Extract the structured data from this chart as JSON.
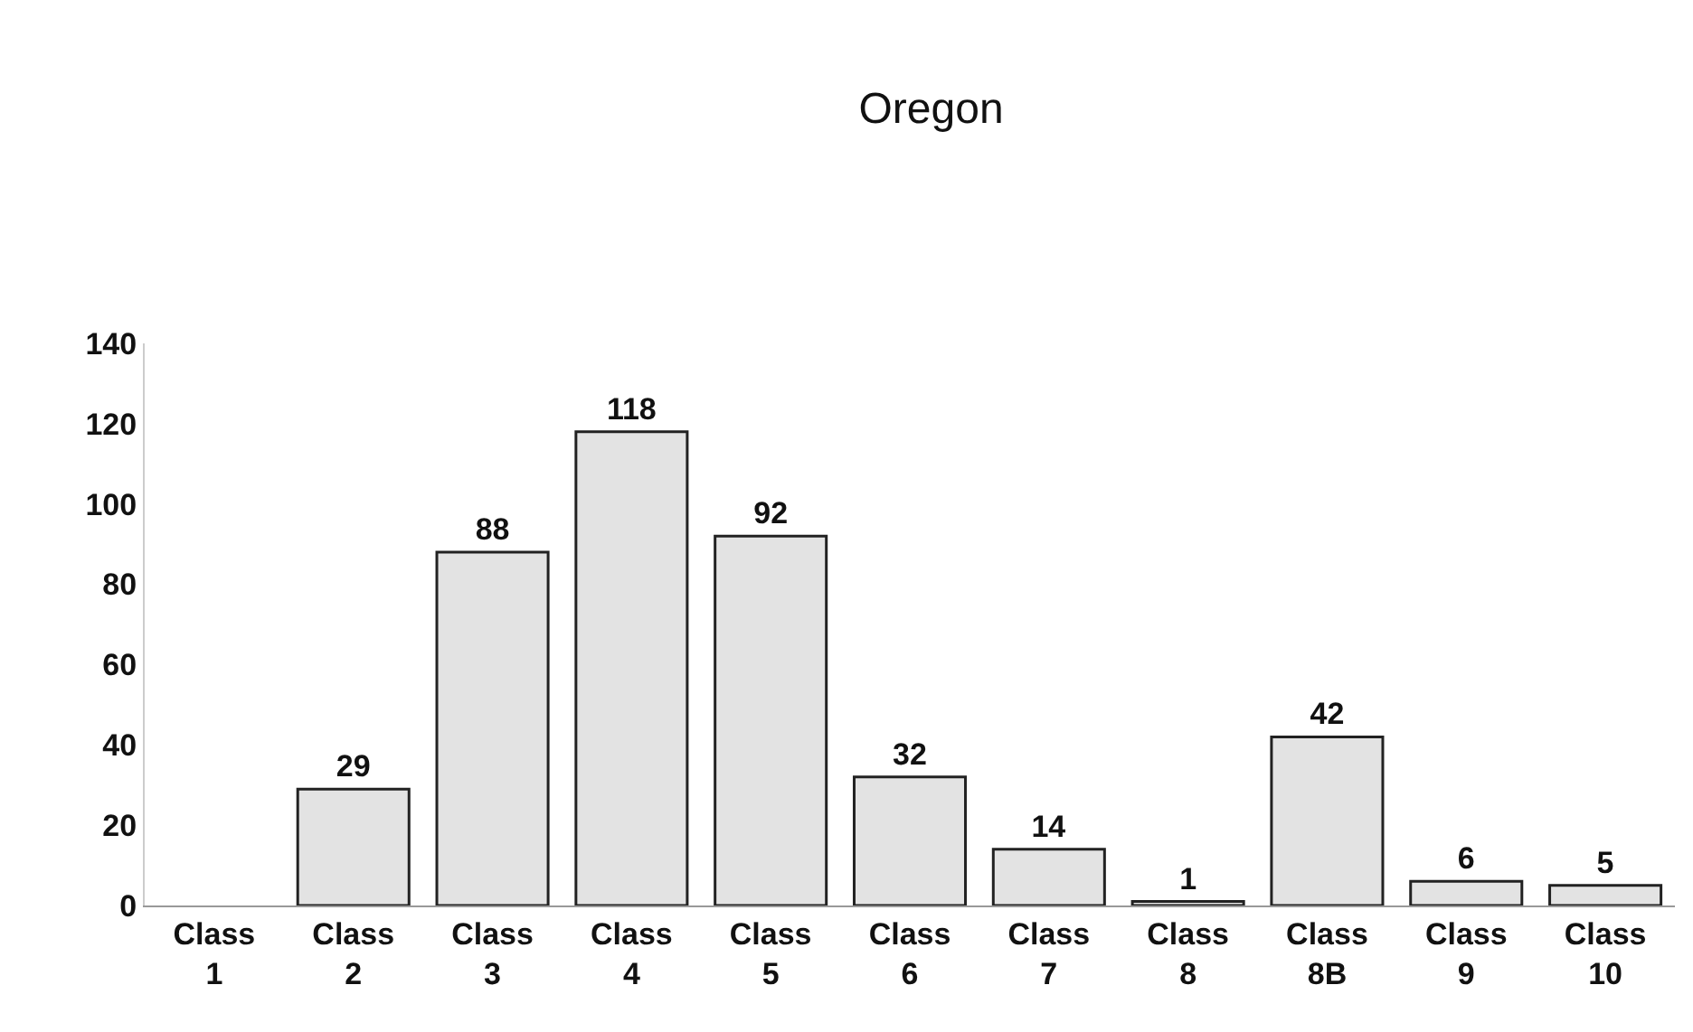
{
  "chart_data": {
    "type": "bar",
    "title": "Oregon",
    "categories": [
      "Class 1",
      "Class 2",
      "Class 3",
      "Class 4",
      "Class 5",
      "Class 6",
      "Class 7",
      "Class 8",
      "Class 8B",
      "Class 9",
      "Class 10"
    ],
    "values": [
      null,
      29,
      88,
      118,
      92,
      32,
      14,
      1,
      42,
      6,
      5
    ],
    "value_labels": [
      null,
      "29",
      "88",
      "118",
      "92",
      "32",
      "14",
      "1",
      "42",
      "6",
      "5"
    ],
    "color": "#e3e3e3",
    "ylim": [
      0,
      140
    ],
    "yticks": [
      0,
      20,
      40,
      60,
      80,
      100,
      120,
      140
    ],
    "legend": false
  }
}
